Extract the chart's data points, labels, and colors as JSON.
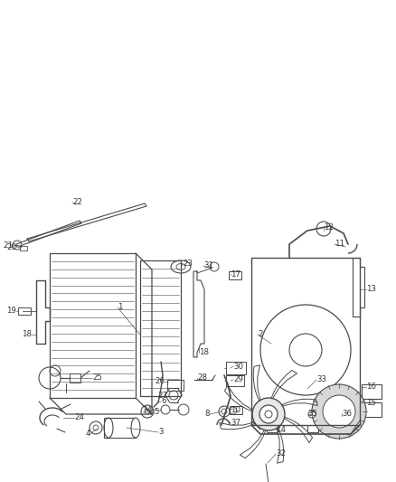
{
  "bg_color": "#ffffff",
  "line_color": "#4a4a4a",
  "label_color": "#333333",
  "figsize": [
    4.38,
    5.33
  ],
  "dpi": 100
}
